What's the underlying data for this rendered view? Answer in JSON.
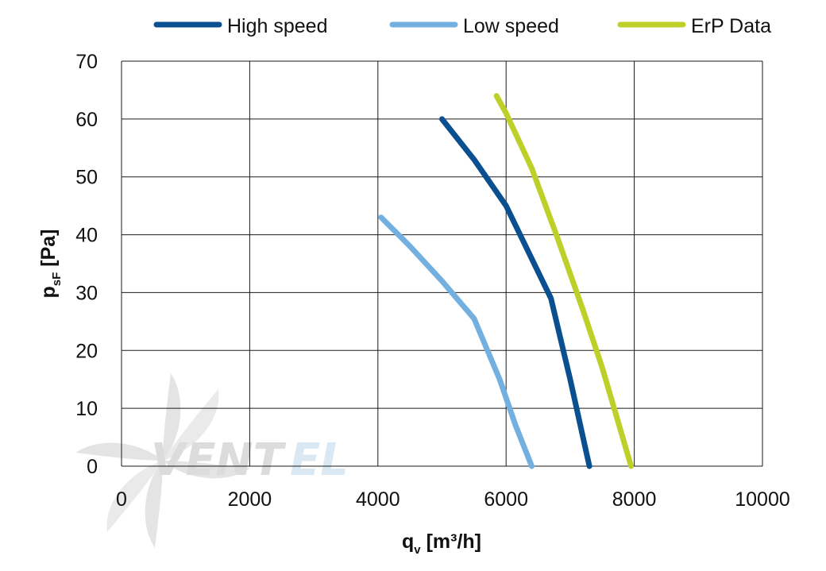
{
  "chart_data": {
    "type": "line",
    "xlabel": {
      "main": "q",
      "sub": "v",
      "rest": " [m³/h]"
    },
    "ylabel": {
      "main": "p",
      "sub": "sF",
      "rest": " [Pa]"
    },
    "xlim": [
      0,
      10000
    ],
    "ylim": [
      0,
      70
    ],
    "xticks": [
      0,
      2000,
      4000,
      6000,
      8000,
      10000
    ],
    "yticks": [
      0,
      10,
      20,
      30,
      40,
      50,
      60,
      70
    ],
    "grid": true,
    "legend_position": "top",
    "series": [
      {
        "name": "High speed",
        "color": "#0a4f8f",
        "points": [
          [
            5000,
            60
          ],
          [
            5500,
            53
          ],
          [
            6000,
            45
          ],
          [
            6700,
            29
          ],
          [
            7000,
            15
          ],
          [
            7300,
            0
          ]
        ]
      },
      {
        "name": "Low speed",
        "color": "#74b0df",
        "points": [
          [
            4050,
            43
          ],
          [
            4500,
            38
          ],
          [
            5000,
            32
          ],
          [
            5500,
            25.5
          ],
          [
            5900,
            15
          ],
          [
            6150,
            7
          ],
          [
            6400,
            0
          ]
        ]
      },
      {
        "name": "ErP Data",
        "color": "#bfcf29",
        "points": [
          [
            5850,
            64
          ],
          [
            6000,
            61
          ],
          [
            6400,
            51.5
          ],
          [
            6800,
            39.5
          ],
          [
            7200,
            27
          ],
          [
            7500,
            17
          ],
          [
            7950,
            0
          ]
        ]
      }
    ]
  },
  "watermark": {
    "brand_left": "VENT",
    "brand_right": "EL",
    "color_left": "#d9d9d9",
    "color_right": "#d6e6f3"
  }
}
